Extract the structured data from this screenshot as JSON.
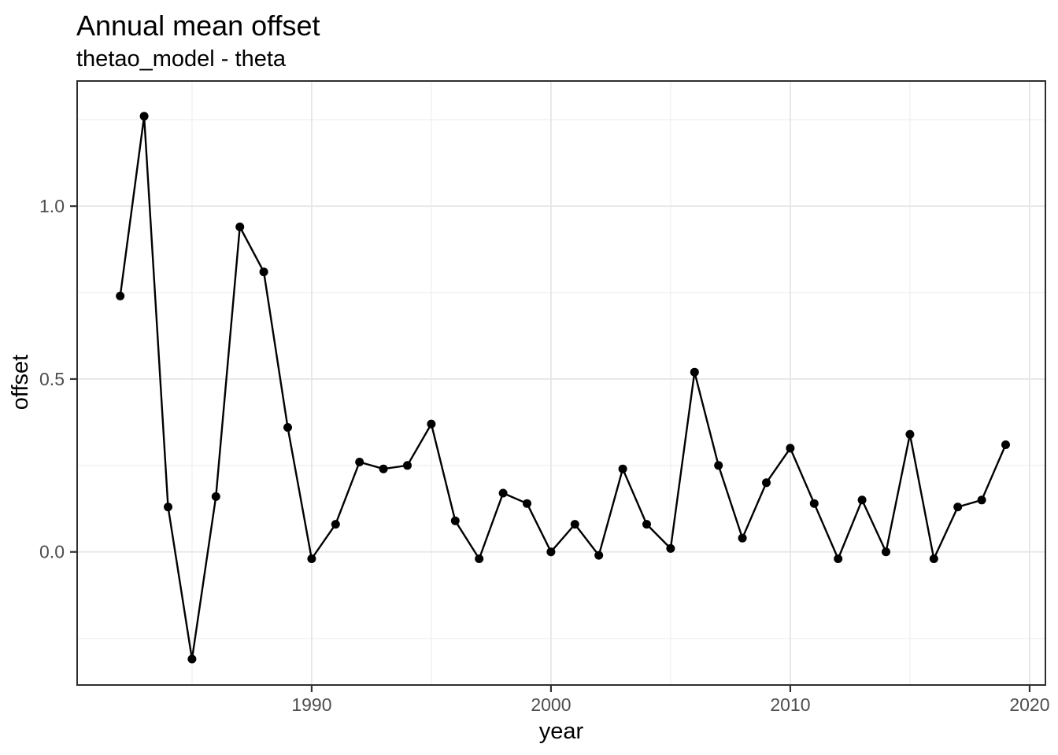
{
  "figure": {
    "title": "Annual mean offset",
    "subtitle": "thetao_model - theta"
  },
  "chart_data": {
    "type": "line",
    "title": "Annual mean offset",
    "subtitle": "thetao_model - theta",
    "xlabel": "year",
    "ylabel": "offset",
    "x": [
      1982,
      1983,
      1984,
      1985,
      1986,
      1987,
      1988,
      1989,
      1990,
      1991,
      1992,
      1993,
      1994,
      1995,
      1996,
      1997,
      1998,
      1999,
      2000,
      2001,
      2002,
      2003,
      2004,
      2005,
      2006,
      2007,
      2008,
      2009,
      2010,
      2011,
      2012,
      2013,
      2014,
      2015,
      2016,
      2017,
      2018,
      2019
    ],
    "series": [
      {
        "name": "offset",
        "values": [
          0.74,
          1.26,
          0.13,
          -0.31,
          0.16,
          0.94,
          0.81,
          0.36,
          -0.02,
          0.08,
          0.26,
          0.24,
          0.25,
          0.37,
          0.09,
          -0.02,
          0.17,
          0.14,
          0.0,
          0.08,
          -0.01,
          0.24,
          0.08,
          0.01,
          0.52,
          0.25,
          0.04,
          0.2,
          0.3,
          0.14,
          -0.02,
          0.15,
          0.0,
          0.34,
          -0.02,
          0.13,
          0.15,
          0.31
        ]
      }
    ],
    "x_range": [
      1980.2,
      2020.66
    ],
    "y_range": [
      -0.385,
      1.362
    ],
    "x_ticks": {
      "major": [
        1990,
        2000,
        2010,
        2020
      ],
      "minor": [
        1985,
        1995,
        2005,
        2015
      ],
      "labels": [
        "1990",
        "2000",
        "2010",
        "2020"
      ]
    },
    "y_ticks": {
      "major": [
        0.0,
        0.5,
        1.0
      ],
      "minor": [
        -0.25,
        0.25,
        0.75,
        1.25
      ],
      "labels": [
        "0.0",
        "0.5",
        "1.0"
      ]
    },
    "grid": "major+minor",
    "legend": "none",
    "marker": "point",
    "style": {
      "line_color": "#000000",
      "point_color": "#000000",
      "grid_major_color": "#e6e6e6",
      "grid_minor_color": "#f0f0f0",
      "panel_border_color": "#2e2e2e",
      "tick_mark_color": "#333333",
      "tick_label_color": "#4d4d4d",
      "text_color": "#000000",
      "background": "#ffffff"
    }
  }
}
